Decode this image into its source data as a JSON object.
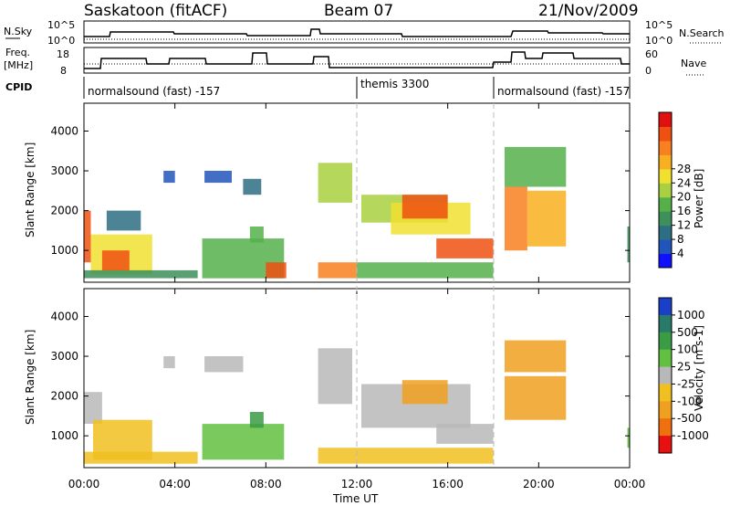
{
  "header": {
    "station": "Saskatoon (fitACF)",
    "beam": "Beam 07",
    "date": "21/Nov/2009"
  },
  "top_panels": {
    "nsky_label": "N.Sky",
    "nsky_ticks": [
      "10^5",
      "10^0"
    ],
    "nsearch_label": "N.Search",
    "nsearch_ticks": [
      "10^5",
      "10^0"
    ],
    "freq_label_1": "Freq.",
    "freq_label_2": "[MHz]",
    "freq_ticks": [
      "18",
      "8"
    ],
    "nave_label": "Nave",
    "nave_ticks": [
      "60",
      "0"
    ],
    "cpid_label": "CPID",
    "cpid_segments": [
      {
        "label": "normalsound (fast) -157",
        "start_hour": 0
      },
      {
        "label": "themis 3300",
        "start_hour": 12
      },
      {
        "label": "normalsound (fast) -157",
        "start_hour": 18
      }
    ]
  },
  "chart_data": [
    {
      "type": "heatmap",
      "name": "power-panel",
      "ylabel": "Slant Range [km]",
      "xlabel": "",
      "y_ticks": [
        "1000",
        "2000",
        "3000",
        "4000"
      ],
      "ylim": [
        200,
        4700
      ],
      "xlim_hours": [
        0,
        24
      ],
      "x_ticks": [
        "00:00",
        "04:00",
        "08:00",
        "12:00",
        "16:00",
        "20:00",
        "00:00"
      ],
      "colorbar": {
        "label": "Power [dB]",
        "ticks": [
          "4",
          "8",
          "12",
          "16",
          "20",
          "24",
          "28"
        ],
        "colors": [
          "#1010ff",
          "#2255bb",
          "#2e6e82",
          "#3d8f5b",
          "#55b04a",
          "#a8d040",
          "#f0e030",
          "#f8b020",
          "#f88020",
          "#f05010",
          "#e01010"
        ]
      },
      "regions": [
        {
          "t": [
            0.0,
            0.3
          ],
          "r": [
            700,
            2000
          ],
          "v": 28
        },
        {
          "t": [
            0.3,
            3.0
          ],
          "r": [
            400,
            1400
          ],
          "v": 20
        },
        {
          "t": [
            0.8,
            2.0
          ],
          "r": [
            500,
            1000
          ],
          "v": 26
        },
        {
          "t": [
            0.0,
            5.0
          ],
          "r": [
            300,
            500
          ],
          "v": 10
        },
        {
          "t": [
            1.0,
            2.5
          ],
          "r": [
            1500,
            2000
          ],
          "v": 8
        },
        {
          "t": [
            3.5,
            4.0
          ],
          "r": [
            2700,
            3000
          ],
          "v": 6
        },
        {
          "t": [
            5.2,
            8.8
          ],
          "r": [
            300,
            1300
          ],
          "v": 14
        },
        {
          "t": [
            5.3,
            6.5
          ],
          "r": [
            2700,
            3000
          ],
          "v": 6
        },
        {
          "t": [
            7.0,
            7.8
          ],
          "r": [
            2400,
            2800
          ],
          "v": 8
        },
        {
          "t": [
            7.3,
            7.9
          ],
          "r": [
            1200,
            1600
          ],
          "v": 12
        },
        {
          "t": [
            8.0,
            8.9
          ],
          "r": [
            300,
            700
          ],
          "v": 28
        },
        {
          "t": [
            10.3,
            12.0
          ],
          "r": [
            300,
            700
          ],
          "v": 24
        },
        {
          "t": [
            10.3,
            11.8
          ],
          "r": [
            2200,
            3200
          ],
          "v": 16
        },
        {
          "t": [
            12.0,
            18.0
          ],
          "r": [
            300,
            700
          ],
          "v": 12
        },
        {
          "t": [
            12.2,
            16.0
          ],
          "r": [
            1700,
            2400
          ],
          "v": 16
        },
        {
          "t": [
            13.5,
            17.0
          ],
          "r": [
            1400,
            2200
          ],
          "v": 20
        },
        {
          "t": [
            14.0,
            16.0
          ],
          "r": [
            1800,
            2400
          ],
          "v": 26
        },
        {
          "t": [
            15.5,
            18.0
          ],
          "r": [
            800,
            1300
          ],
          "v": 26
        },
        {
          "t": [
            18.5,
            19.5
          ],
          "r": [
            1000,
            2600
          ],
          "v": 24
        },
        {
          "t": [
            19.5,
            21.2
          ],
          "r": [
            1100,
            2500
          ],
          "v": 22
        },
        {
          "t": [
            18.5,
            21.2
          ],
          "r": [
            2600,
            3600
          ],
          "v": 14
        },
        {
          "t": [
            23.9,
            24.0
          ],
          "r": [
            700,
            1600
          ],
          "v": 10
        }
      ]
    },
    {
      "type": "heatmap",
      "name": "velocity-panel",
      "ylabel": "Slant Range [km]",
      "xlabel": "Time UT",
      "y_ticks": [
        "1000",
        "2000",
        "3000",
        "4000"
      ],
      "ylim": [
        200,
        4700
      ],
      "xlim_hours": [
        0,
        24
      ],
      "x_ticks": [
        "00:00",
        "04:00",
        "08:00",
        "12:00",
        "16:00",
        "20:00",
        "00:00"
      ],
      "colorbar": {
        "label": "Velocity [m s-1]",
        "ticks": [
          "1000",
          "500",
          "100",
          "25",
          "-25",
          "-100",
          "-500",
          "-1000"
        ],
        "colors": [
          "#1a3fc8",
          "#2a7a6a",
          "#3a9c44",
          "#62c040",
          "#b8b8b8",
          "#f0c020",
          "#f0a020",
          "#f07010",
          "#e81010"
        ]
      },
      "regions": [
        {
          "t": [
            0.0,
            0.8
          ],
          "r": [
            1300,
            2100
          ],
          "v": 0
        },
        {
          "t": [
            0.4,
            3.0
          ],
          "r": [
            400,
            1400
          ],
          "v": -80
        },
        {
          "t": [
            0.0,
            5.0
          ],
          "r": [
            300,
            600
          ],
          "v": -40
        },
        {
          "t": [
            3.5,
            4.0
          ],
          "r": [
            2700,
            3000
          ],
          "v": 0
        },
        {
          "t": [
            5.2,
            8.8
          ],
          "r": [
            400,
            1300
          ],
          "v": 40
        },
        {
          "t": [
            5.3,
            7.0
          ],
          "r": [
            2600,
            3000
          ],
          "v": 0
        },
        {
          "t": [
            7.3,
            7.9
          ],
          "r": [
            1200,
            1600
          ],
          "v": 200
        },
        {
          "t": [
            10.3,
            12.0
          ],
          "r": [
            300,
            700
          ],
          "v": -60
        },
        {
          "t": [
            10.3,
            11.8
          ],
          "r": [
            1800,
            3200
          ],
          "v": 0
        },
        {
          "t": [
            12.0,
            18.0
          ],
          "r": [
            300,
            700
          ],
          "v": -40
        },
        {
          "t": [
            12.2,
            17.0
          ],
          "r": [
            1200,
            2300
          ],
          "v": 0
        },
        {
          "t": [
            14.0,
            16.0
          ],
          "r": [
            1800,
            2400
          ],
          "v": -300
        },
        {
          "t": [
            15.5,
            18.0
          ],
          "r": [
            800,
            1300
          ],
          "v": 0
        },
        {
          "t": [
            18.5,
            21.2
          ],
          "r": [
            1400,
            2500
          ],
          "v": -200
        },
        {
          "t": [
            18.5,
            21.2
          ],
          "r": [
            2600,
            3400
          ],
          "v": -200
        },
        {
          "t": [
            23.9,
            24.0
          ],
          "r": [
            700,
            1200
          ],
          "v": 60
        }
      ]
    }
  ]
}
